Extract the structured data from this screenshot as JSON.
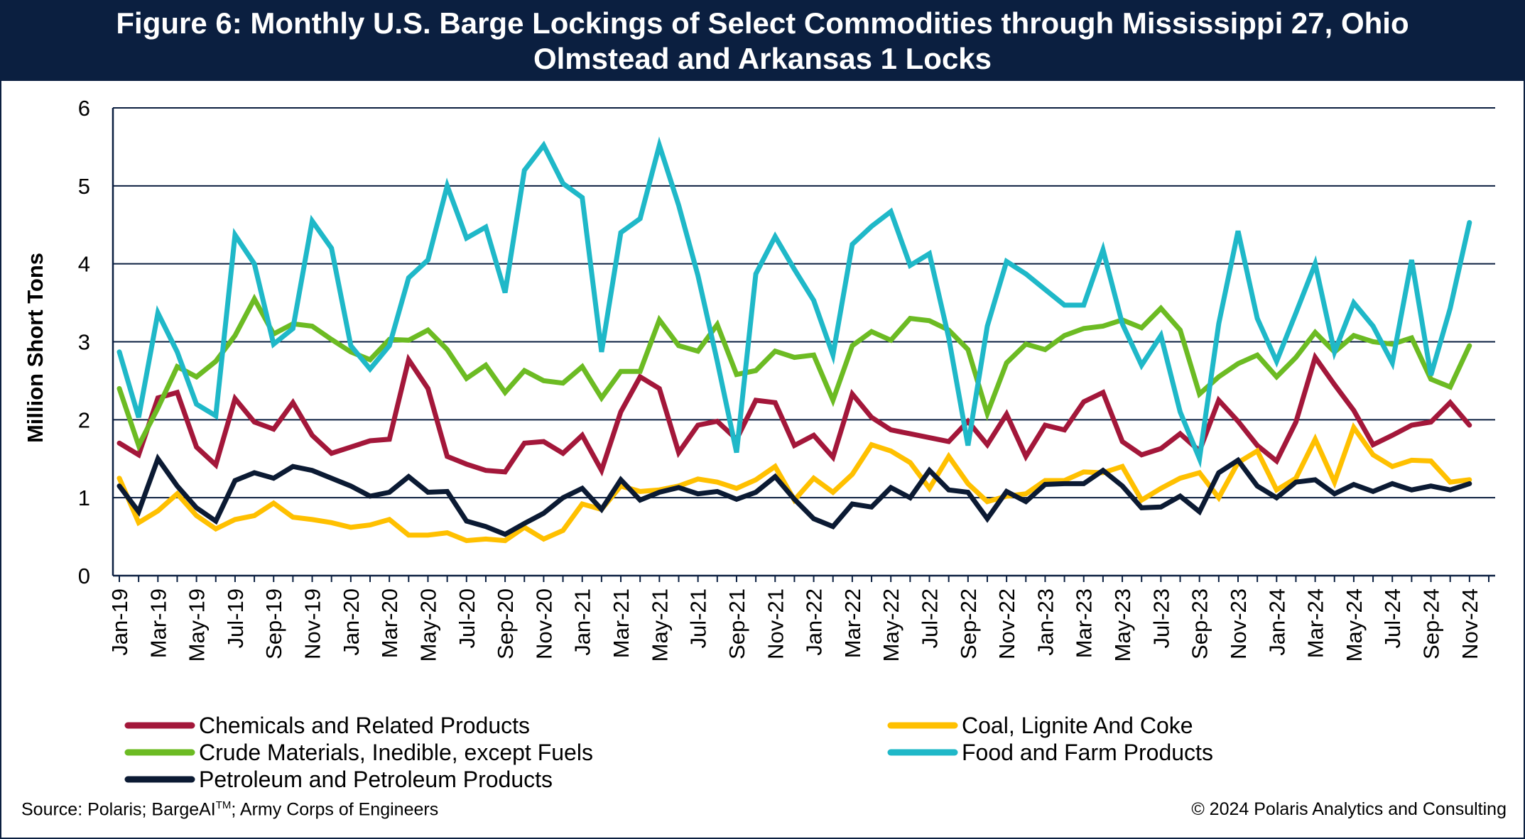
{
  "title_line1": "Figure 6: Monthly U.S. Barge Lockings of Select Commodities through Mississippi 27, Ohio",
  "title_line2": "Olmstead and Arkansas 1 Locks",
  "footer": {
    "source_prefix": "Source: Polaris; BargeAI",
    "source_tm": "TM",
    "source_suffix": "; Army Corps of Engineers",
    "copyright": "© 2024 Polaris Analytics and Consulting"
  },
  "colors": {
    "title_bg": "#0b1f40",
    "grid": "#0b1f40",
    "chemicals": "#a3173a",
    "coal": "#ffc000",
    "crude": "#6cbb23",
    "food": "#1fb8c8",
    "petroleum": "#0b1a33"
  },
  "chart_data": {
    "type": "line",
    "title": "Figure 6: Monthly U.S. Barge Lockings of Select Commodities through Mississippi 27, Ohio Olmstead and Arkansas 1 Locks",
    "ylabel": "Million Short Tons",
    "xlabel": "",
    "ylim": [
      0,
      6
    ],
    "yticks": [
      "0",
      "1",
      "2",
      "3",
      "4",
      "5",
      "6"
    ],
    "grid": true,
    "legend_position": "bottom",
    "x": [
      "Jan-19",
      "Feb-19",
      "Mar-19",
      "Apr-19",
      "May-19",
      "Jun-19",
      "Jul-19",
      "Aug-19",
      "Sep-19",
      "Oct-19",
      "Nov-19",
      "Dec-19",
      "Jan-20",
      "Feb-20",
      "Mar-20",
      "Apr-20",
      "May-20",
      "Jun-20",
      "Jul-20",
      "Aug-20",
      "Sep-20",
      "Oct-20",
      "Nov-20",
      "Dec-20",
      "Jan-21",
      "Feb-21",
      "Mar-21",
      "Apr-21",
      "May-21",
      "Jun-21",
      "Jul-21",
      "Aug-21",
      "Sep-21",
      "Oct-21",
      "Nov-21",
      "Dec-21",
      "Jan-22",
      "Feb-22",
      "Mar-22",
      "Apr-22",
      "May-22",
      "Jun-22",
      "Jul-22",
      "Aug-22",
      "Sep-22",
      "Oct-22",
      "Nov-22",
      "Dec-22",
      "Jan-23",
      "Feb-23",
      "Mar-23",
      "Apr-23",
      "May-23",
      "Jun-23",
      "Jul-23",
      "Aug-23",
      "Sep-23",
      "Oct-23",
      "Nov-23",
      "Dec-23",
      "Jan-24",
      "Feb-24",
      "Mar-24",
      "Apr-24",
      "May-24",
      "Jun-24",
      "Jul-24",
      "Aug-24",
      "Sep-24",
      "Oct-24",
      "Nov-24",
      "Dec-24"
    ],
    "x_tick_labels": [
      "Jan-19",
      "Mar-19",
      "May-19",
      "Jul-19",
      "Sep-19",
      "Nov-19",
      "Jan-20",
      "Mar-20",
      "May-20",
      "Jul-20",
      "Sep-20",
      "Nov-20",
      "Jan-21",
      "Mar-21",
      "May-21",
      "Jul-21",
      "Sep-21",
      "Nov-21",
      "Jan-22",
      "Mar-22",
      "May-22",
      "Jul-22",
      "Sep-22",
      "Nov-22",
      "Jan-23",
      "Mar-23",
      "May-23",
      "Jul-23",
      "Sep-23",
      "Nov-23",
      "Jan-24",
      "Mar-24",
      "May-24",
      "Jul-24",
      "Sep-24",
      "Nov-24"
    ],
    "series": [
      {
        "name": "Chemicals and Related Products",
        "color": "#a3173a",
        "values": [
          1.7,
          1.55,
          2.28,
          2.35,
          1.65,
          1.42,
          2.27,
          1.97,
          1.88,
          2.22,
          1.8,
          1.57,
          1.65,
          1.73,
          1.75,
          2.77,
          2.4,
          1.53,
          1.43,
          1.35,
          1.33,
          1.7,
          1.72,
          1.57,
          1.8,
          1.35,
          2.1,
          2.55,
          2.4,
          1.58,
          1.93,
          1.98,
          1.75,
          2.25,
          2.22,
          1.67,
          1.8,
          1.52,
          2.33,
          2.03,
          1.87,
          1.82,
          1.77,
          1.72,
          1.98,
          1.68,
          2.07,
          1.53,
          1.93,
          1.87,
          2.23,
          2.35,
          1.72,
          1.55,
          1.63,
          1.82,
          1.6,
          2.25,
          1.98,
          1.67,
          1.47,
          1.97,
          2.8,
          2.45,
          2.12,
          1.68,
          1.8,
          1.93,
          1.97,
          2.22,
          1.93,
          null
        ]
      },
      {
        "name": "Coal, Lignite And Coke",
        "color": "#ffc000",
        "values": [
          1.25,
          0.68,
          0.83,
          1.05,
          0.77,
          0.6,
          0.72,
          0.77,
          0.93,
          0.75,
          0.72,
          0.68,
          0.62,
          0.65,
          0.72,
          0.52,
          0.52,
          0.55,
          0.45,
          0.47,
          0.45,
          0.62,
          0.47,
          0.58,
          0.92,
          0.85,
          1.15,
          1.08,
          1.1,
          1.15,
          1.24,
          1.2,
          1.12,
          1.23,
          1.4,
          0.97,
          1.25,
          1.07,
          1.3,
          1.68,
          1.6,
          1.45,
          1.12,
          1.53,
          1.18,
          0.95,
          1.02,
          1.05,
          1.22,
          1.22,
          1.33,
          1.32,
          1.4,
          0.97,
          1.12,
          1.25,
          1.32,
          1.0,
          1.45,
          1.6,
          1.1,
          1.25,
          1.75,
          1.2,
          1.9,
          1.55,
          1.4,
          1.48,
          1.47,
          1.2,
          1.23,
          null
        ]
      },
      {
        "name": "Crude Materials, Inedible, except Fuels",
        "color": "#6cbb23",
        "values": [
          2.4,
          1.67,
          2.15,
          2.68,
          2.55,
          2.75,
          3.08,
          3.55,
          3.1,
          3.23,
          3.2,
          3.03,
          2.87,
          2.77,
          3.03,
          3.02,
          3.15,
          2.9,
          2.53,
          2.7,
          2.35,
          2.63,
          2.5,
          2.47,
          2.68,
          2.28,
          2.62,
          2.62,
          3.28,
          2.95,
          2.88,
          3.22,
          2.58,
          2.63,
          2.88,
          2.8,
          2.83,
          2.25,
          2.95,
          3.13,
          3.02,
          3.3,
          3.27,
          3.15,
          2.9,
          2.08,
          2.73,
          2.97,
          2.9,
          3.08,
          3.17,
          3.2,
          3.28,
          3.18,
          3.43,
          3.15,
          2.33,
          2.55,
          2.72,
          2.83,
          2.55,
          2.8,
          3.12,
          2.87,
          3.08,
          3.0,
          2.97,
          3.05,
          2.52,
          2.42,
          2.95,
          null
        ]
      },
      {
        "name": "Food and Farm Products",
        "color": "#1fb8c8",
        "values": [
          2.87,
          2.03,
          3.37,
          2.87,
          2.2,
          2.05,
          4.37,
          4.0,
          2.97,
          3.17,
          4.55,
          4.2,
          2.95,
          2.65,
          2.95,
          3.82,
          4.05,
          5.0,
          4.33,
          4.47,
          3.63,
          5.2,
          5.52,
          5.03,
          4.85,
          2.87,
          4.4,
          4.58,
          5.52,
          4.75,
          3.85,
          2.75,
          1.58,
          3.87,
          4.35,
          3.93,
          3.53,
          2.83,
          4.25,
          4.48,
          4.67,
          3.98,
          4.13,
          3.05,
          1.67,
          3.2,
          4.03,
          3.87,
          3.67,
          3.47,
          3.47,
          4.18,
          3.23,
          2.7,
          3.08,
          2.1,
          1.5,
          3.23,
          4.42,
          3.3,
          2.75,
          3.37,
          4.0,
          2.87,
          3.5,
          3.2,
          2.73,
          4.05,
          2.57,
          3.43,
          4.53,
          null
        ]
      },
      {
        "name": "Petroleum and Petroleum Products",
        "color": "#0b1a33",
        "values": [
          1.15,
          0.82,
          1.5,
          1.15,
          0.87,
          0.7,
          1.22,
          1.32,
          1.25,
          1.4,
          1.35,
          1.25,
          1.15,
          1.02,
          1.07,
          1.27,
          1.07,
          1.08,
          0.7,
          0.63,
          0.53,
          0.67,
          0.8,
          1.0,
          1.12,
          0.85,
          1.23,
          0.97,
          1.07,
          1.13,
          1.05,
          1.08,
          0.98,
          1.07,
          1.27,
          0.98,
          0.73,
          0.63,
          0.92,
          0.88,
          1.13,
          1.0,
          1.35,
          1.1,
          1.07,
          0.73,
          1.08,
          0.95,
          1.17,
          1.18,
          1.18,
          1.35,
          1.15,
          0.87,
          0.88,
          1.02,
          0.82,
          1.32,
          1.48,
          1.15,
          1.0,
          1.2,
          1.23,
          1.05,
          1.17,
          1.08,
          1.18,
          1.1,
          1.15,
          1.1,
          1.18,
          null
        ]
      }
    ]
  }
}
